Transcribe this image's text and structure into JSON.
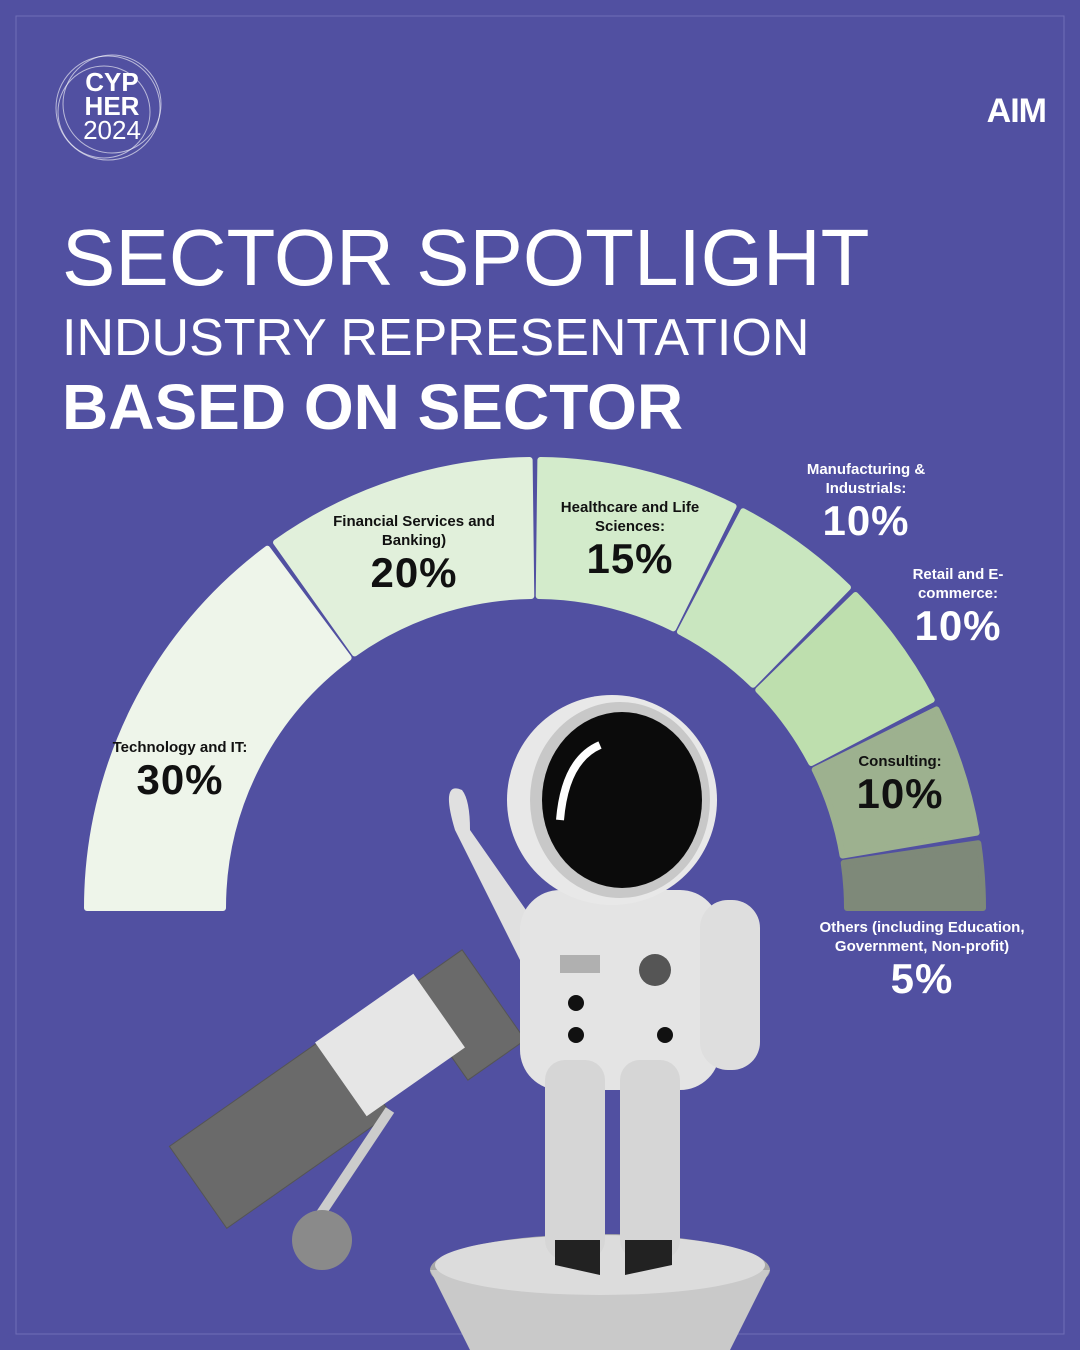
{
  "logos": {
    "event": [
      "CYP",
      "HER",
      "2024"
    ],
    "brand": "AIM"
  },
  "chart_data": {
    "type": "pie",
    "half_donut": true,
    "title": "SECTOR SPOTLIGHT",
    "subtitle": "INDUSTRY REPRESENTATION",
    "heading": "BASED ON SECTOR",
    "categories": [
      "Technology and IT:",
      "Financial Services and Banking)",
      "Healthcare and Life Sciences:",
      "Manufacturing & Industrials:",
      "Retail and E-commerce:",
      "Consulting:",
      "Others (including Education, Government, Non-profit)"
    ],
    "values": [
      30,
      20,
      15,
      10,
      10,
      10,
      5
    ],
    "value_labels": [
      "30%",
      "20%",
      "15%",
      "10%",
      "10%",
      "10%",
      "5%"
    ],
    "colors": [
      "#eef5ea",
      "#e1f0db",
      "#d3ebcb",
      "#c9e6bf",
      "#bedfae",
      "#9db18f",
      "#7e8979"
    ]
  }
}
